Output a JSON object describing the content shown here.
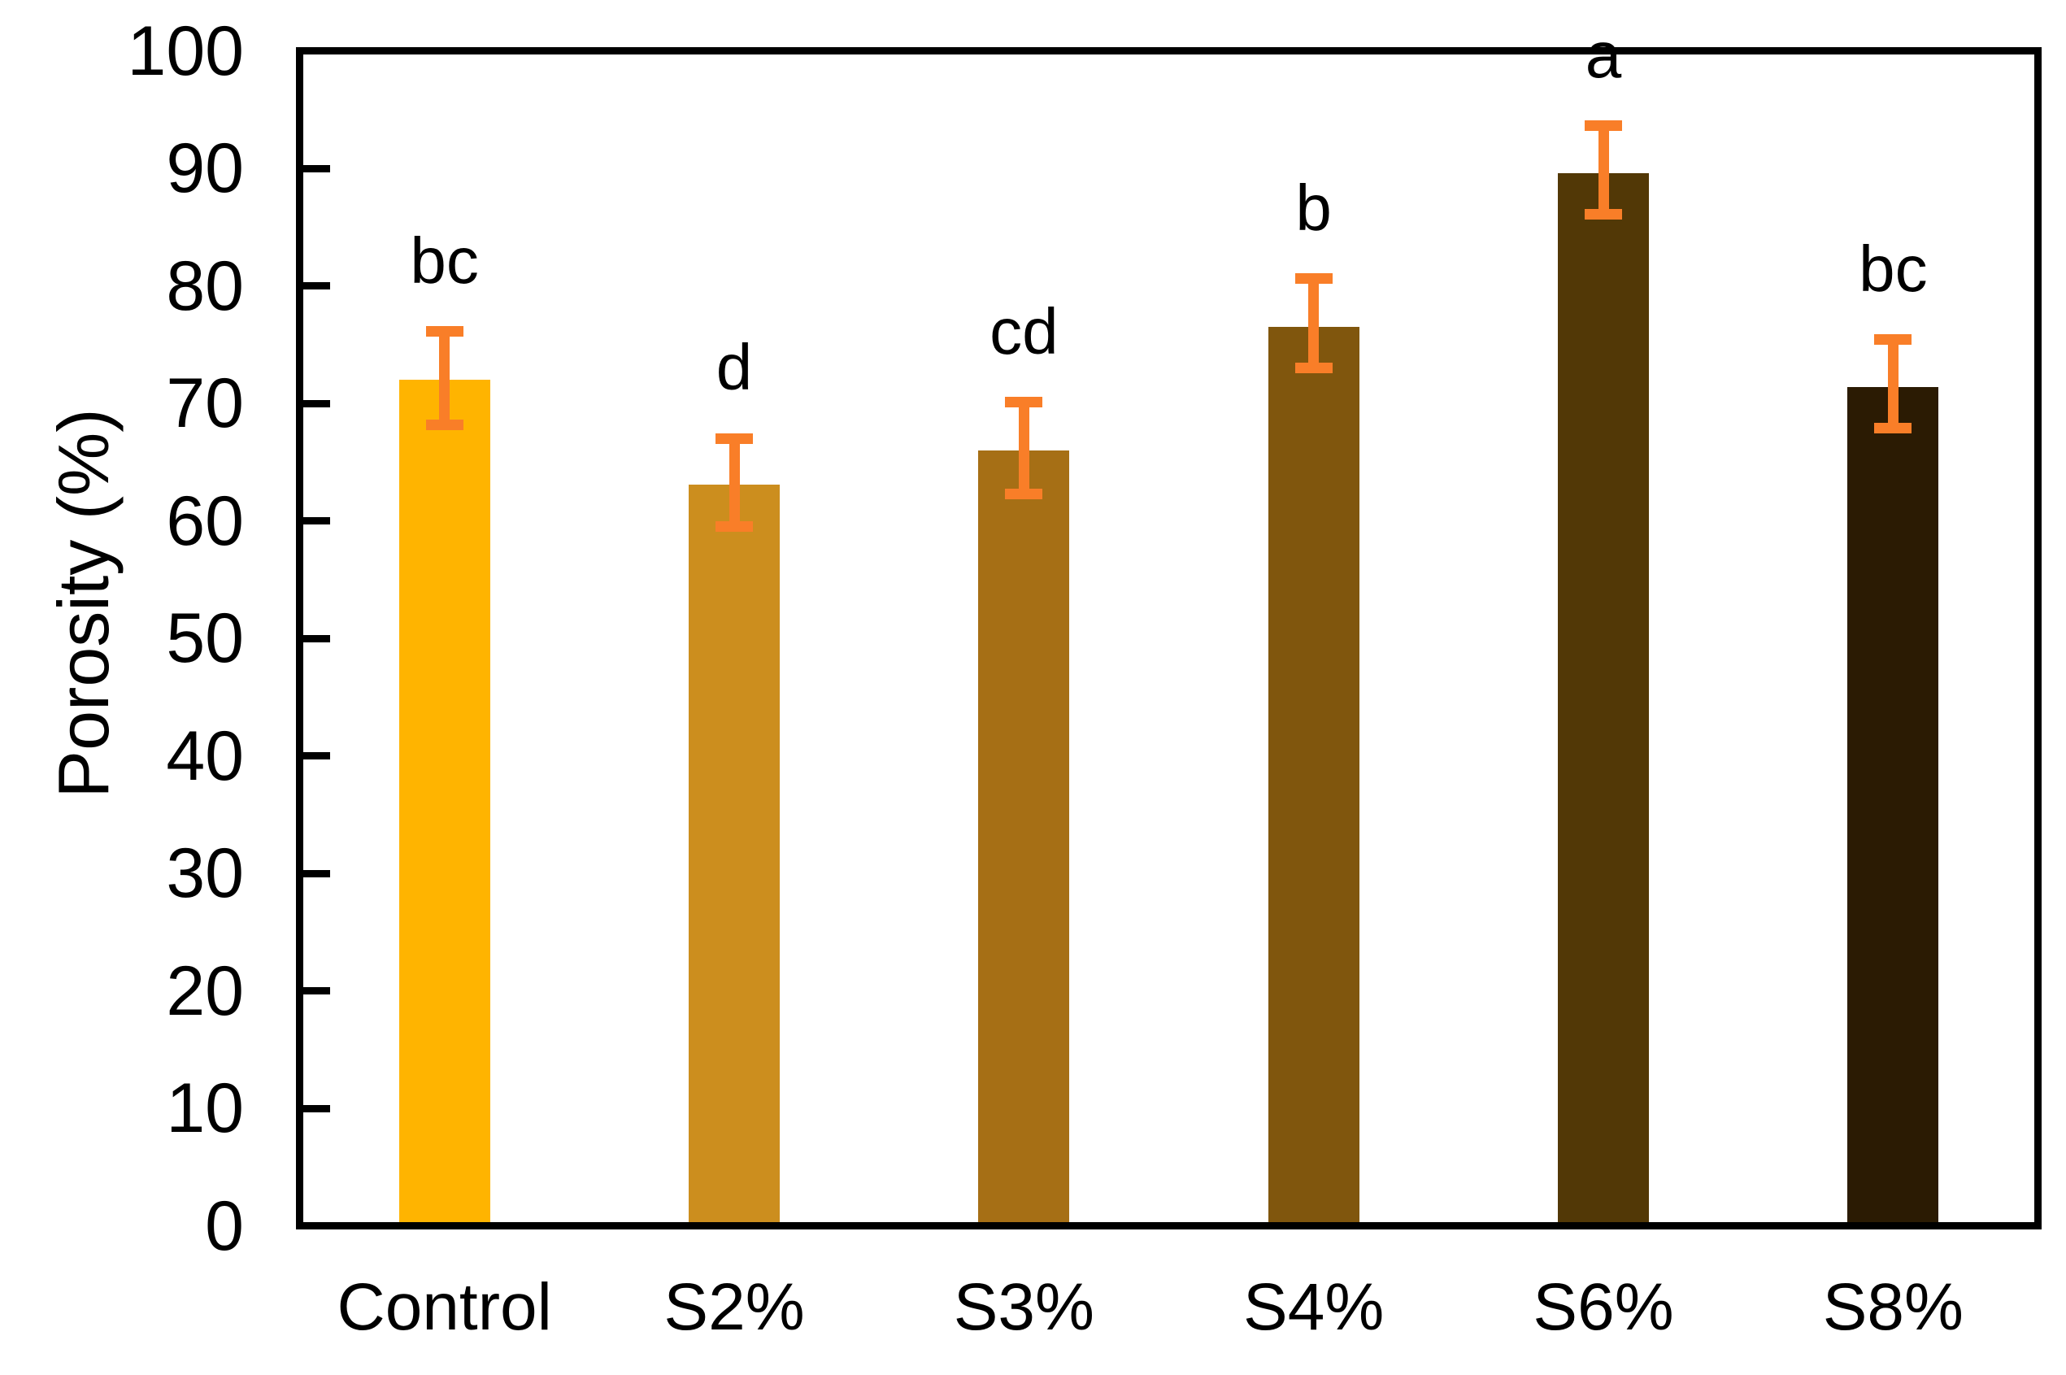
{
  "chart_data": {
    "type": "bar",
    "title": "",
    "ylabel": "Porosity (%)",
    "xlabel": "",
    "ylim": [
      0,
      100
    ],
    "yticks": [
      0,
      10,
      20,
      30,
      40,
      50,
      60,
      70,
      80,
      90,
      100
    ],
    "grid": false,
    "legend_position": "none",
    "categories": [
      "Control",
      "S2%",
      "S3%",
      "S4%",
      "S6%",
      "S8%"
    ],
    "series": [
      {
        "name": "Porosity",
        "values": [
          72.0,
          63.1,
          66.0,
          76.5,
          89.6,
          71.4
        ],
        "error_upper": [
          76.1,
          67.0,
          70.1,
          80.6,
          93.6,
          75.4
        ],
        "error_lower": [
          68.2,
          59.5,
          62.3,
          73.0,
          86.1,
          67.9
        ]
      }
    ],
    "sig_letters": [
      "bc",
      "d",
      "cd",
      "b",
      "a",
      "bc"
    ],
    "bar_colors": [
      "#FFB400",
      "#CC8E1E",
      "#A66F15",
      "#80560D",
      "#523806",
      "#2B1B03"
    ],
    "error_bar_color": "#F97E28",
    "axis_color": "#000000",
    "background_color": "#FFFFFF"
  }
}
